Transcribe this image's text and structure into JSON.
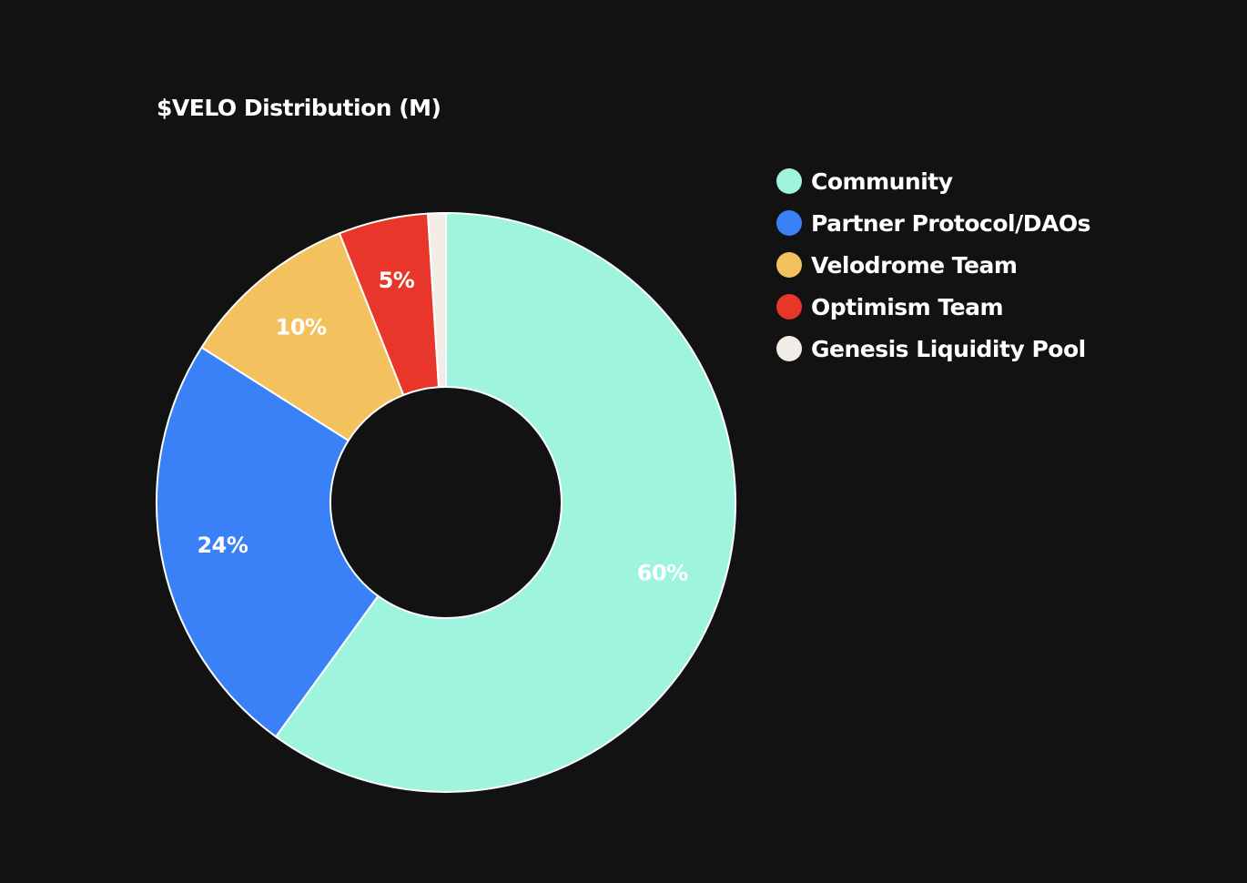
{
  "chart_data": {
    "type": "pie",
    "variant": "donut",
    "title": "$VELO Distribution (M)",
    "legend_position": "top-right",
    "categories": [
      "Community",
      "Partner Protocol/DAOs",
      "Velodrome Team",
      "Optimism Team",
      "Genesis Liquidity Pool"
    ],
    "values": [
      60,
      24,
      10,
      5,
      1
    ],
    "data_labels": [
      "60%",
      "24%",
      "10%",
      "5%",
      ""
    ],
    "colors": [
      "#9FF4DD",
      "#3A80F6",
      "#F3C15E",
      "#E8372A",
      "#F2ECE6"
    ],
    "slice_border_color": "#FFFFFF"
  }
}
